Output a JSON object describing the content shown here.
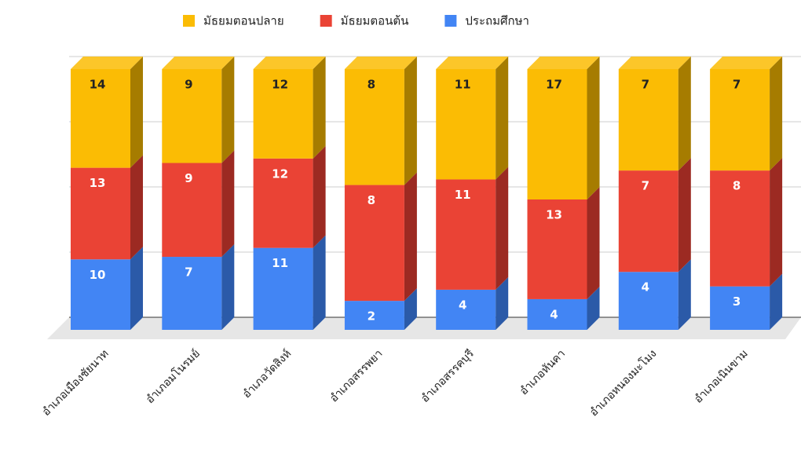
{
  "chart_data": {
    "type": "bar3d",
    "stacking": "percent",
    "categories": [
      "อำเภอเมืองชัยนาท",
      "อำเภอมโนรมย์",
      "อำเภอวัดสิงห์",
      "อำเภอสรรพยา",
      "อำเภอสรรคบุรี",
      "อำเภอหันคา",
      "อำเภอหนองมะโมง",
      "อำเภอเนินขาม"
    ],
    "series": [
      {
        "name": "มัธยมตอนปลาย",
        "color": "#fbbc04",
        "side_color": "#a67c00",
        "label_color": "#222222",
        "values": [
          14,
          9,
          12,
          8,
          11,
          17,
          7,
          7
        ]
      },
      {
        "name": "มัธยมตอนต้น",
        "color": "#ea4335",
        "side_color": "#9c2a22",
        "label_color": "#ffffff",
        "values": [
          13,
          9,
          12,
          8,
          11,
          13,
          7,
          8
        ]
      },
      {
        "name": "ประถมศึกษา",
        "color": "#4285f4",
        "side_color": "#2b5aa8",
        "label_color": "#ffffff",
        "values": [
          10,
          7,
          11,
          2,
          4,
          4,
          4,
          3
        ]
      }
    ],
    "stack_order": [
      2,
      1,
      0
    ],
    "ylim": [
      0,
      100
    ],
    "yticks": [
      0,
      25,
      50,
      75,
      100
    ],
    "ytick_labels": false,
    "grid": true,
    "legend": "top"
  }
}
